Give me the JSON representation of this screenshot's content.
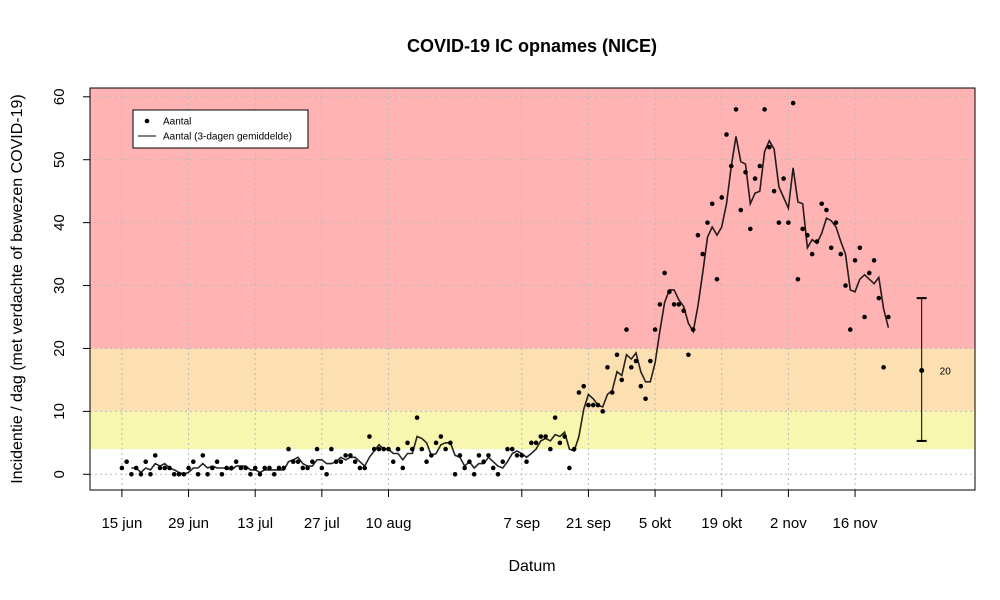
{
  "chart_data": {
    "type": "scatter-line",
    "title": "COVID-19 IC opnames (NICE)",
    "x_label": "Datum",
    "y_label": "Incidentie / dag (met verdachte of bewezen COVID-19)",
    "x": [
      167,
      168,
      169,
      170,
      171,
      172,
      173,
      174,
      175,
      176,
      177,
      178,
      179,
      180,
      181,
      182,
      183,
      184,
      185,
      186,
      187,
      188,
      189,
      190,
      191,
      192,
      193,
      194,
      195,
      196,
      197,
      198,
      199,
      200,
      201,
      202,
      203,
      204,
      205,
      206,
      207,
      208,
      209,
      210,
      211,
      212,
      213,
      214,
      215,
      216,
      217,
      218,
      219,
      220,
      221,
      222,
      223,
      224,
      225,
      226,
      227,
      228,
      229,
      230,
      231,
      232,
      233,
      234,
      235,
      236,
      237,
      238,
      239,
      240,
      241,
      242,
      243,
      244,
      245,
      246,
      247,
      248,
      249,
      250,
      251,
      252,
      253,
      254,
      255,
      256,
      257,
      258,
      259,
      260,
      261,
      262,
      263,
      264,
      265,
      266,
      267,
      268,
      269,
      270,
      271,
      272,
      273,
      274,
      275,
      276,
      277,
      278,
      279,
      280,
      281,
      282,
      283,
      284,
      285,
      286,
      287,
      288,
      289,
      290,
      291,
      292,
      293,
      294,
      295,
      296,
      297,
      298,
      299,
      300,
      301,
      302,
      303,
      304,
      305,
      306,
      307,
      308,
      309,
      310,
      311,
      312,
      313,
      314,
      315,
      316,
      317,
      318,
      319,
      320,
      321,
      322,
      323,
      324,
      325,
      326,
      327,
      328
    ],
    "series": [
      {
        "name": "Aantal",
        "color": "#000000",
        "marker": "point",
        "values": [
          1,
          2,
          0,
          1,
          0,
          2,
          0,
          3,
          1,
          1,
          1,
          0,
          0,
          0,
          1,
          2,
          0,
          3,
          0,
          1,
          2,
          0,
          1,
          1,
          2,
          1,
          1,
          0,
          1,
          0,
          1,
          1,
          0,
          1,
          1,
          4,
          2,
          2,
          1,
          1,
          2,
          4,
          1,
          0,
          4,
          2,
          2,
          3,
          3,
          2,
          1,
          1,
          6,
          4,
          4,
          4,
          4,
          2,
          4,
          1,
          5,
          4,
          9,
          4,
          2,
          3,
          5,
          6,
          4,
          5,
          0,
          3,
          1,
          2,
          0,
          3,
          2,
          3,
          1,
          0,
          2,
          4,
          4,
          3,
          3,
          2,
          5,
          5,
          6,
          6,
          4,
          9,
          5,
          6,
          1,
          4,
          13,
          14,
          11,
          11,
          11,
          10,
          17,
          13,
          19,
          15,
          23,
          17,
          18,
          14,
          12,
          18,
          23,
          27,
          32,
          29,
          27,
          27,
          26,
          19,
          23,
          38,
          35,
          40,
          43,
          31,
          44,
          54,
          49,
          58,
          42,
          48,
          39,
          47,
          49,
          58,
          52,
          45,
          40,
          47,
          40,
          59,
          31,
          39,
          38,
          35,
          37,
          43,
          42,
          36,
          40,
          35,
          30,
          23,
          34,
          36,
          25,
          32,
          34,
          28,
          17,
          25
        ]
      },
      {
        "name": "Aantal (3-dagen gemiddelde)",
        "color": "#000000",
        "marker": "line",
        "values": [
          null,
          null,
          1.0,
          1.0,
          0.3,
          1.0,
          0.7,
          1.7,
          1.3,
          1.7,
          1.0,
          0.7,
          0.3,
          0,
          0.3,
          1.0,
          1.0,
          1.7,
          1.0,
          1.3,
          1.0,
          1.0,
          1.0,
          0.7,
          1.3,
          1.3,
          1.3,
          0.7,
          0.7,
          0.3,
          0.7,
          0.7,
          0.7,
          0.7,
          0.7,
          2.0,
          2.3,
          2.7,
          1.7,
          1.3,
          1.3,
          2.3,
          2.3,
          1.7,
          1.7,
          2.0,
          2.7,
          2.3,
          2.7,
          2.7,
          2.0,
          1.3,
          2.7,
          3.7,
          4.7,
          4.0,
          4.0,
          3.3,
          3.3,
          2.3,
          3.3,
          3.3,
          6.0,
          5.7,
          5.0,
          3.0,
          3.3,
          4.7,
          5.0,
          5.0,
          3.0,
          2.7,
          1.3,
          2.0,
          1.0,
          1.7,
          1.7,
          2.7,
          2.0,
          1.3,
          1.0,
          2.0,
          3.3,
          3.7,
          3.3,
          2.7,
          3.3,
          4.0,
          5.3,
          5.7,
          5.3,
          6.3,
          6.0,
          6.7,
          4.0,
          3.7,
          6.0,
          10.3,
          12.7,
          12.0,
          11.0,
          10.7,
          12.7,
          13.3,
          16.3,
          15.7,
          19.0,
          18.3,
          19.3,
          16.3,
          14.7,
          14.7,
          17.7,
          22.7,
          27.3,
          29.3,
          29.3,
          27.7,
          26.7,
          24.0,
          22.7,
          26.7,
          32.0,
          37.7,
          39.3,
          38.0,
          39.3,
          43.0,
          49.0,
          53.7,
          49.7,
          49.3,
          43.0,
          44.7,
          45.0,
          51.3,
          53.0,
          51.7,
          45.7,
          44.0,
          42.3,
          48.7,
          43.3,
          43.0,
          36.0,
          37.3,
          36.7,
          38.3,
          40.7,
          40.3,
          39.3,
          37.0,
          35.0,
          29.3,
          29.0,
          31.0,
          31.7,
          31.0,
          30.3,
          31.3,
          26.3,
          23.3
        ]
      }
    ],
    "xlim": [
      160.3,
      346.2
    ],
    "xticks": [
      {
        "value": 167,
        "label": "15 jun"
      },
      {
        "value": 181,
        "label": "29 jun"
      },
      {
        "value": 195,
        "label": "13 jul"
      },
      {
        "value": 209,
        "label": "27 jul"
      },
      {
        "value": 223,
        "label": "10 aug"
      },
      {
        "value": 251,
        "label": "7 sep"
      },
      {
        "value": 265,
        "label": "21 sep"
      },
      {
        "value": 279,
        "label": "5 okt"
      },
      {
        "value": 293,
        "label": "19 okt"
      },
      {
        "value": 307,
        "label": "2 nov"
      },
      {
        "value": 321,
        "label": "16 nov"
      }
    ],
    "ylim": [
      -2.5,
      61.4
    ],
    "yticks": [
      0,
      10,
      20,
      30,
      40,
      50,
      60
    ],
    "grid": true,
    "legend": "top-left",
    "zones": [
      {
        "min": 4,
        "max": 10,
        "color": "#f7f7b0"
      },
      {
        "min": 10,
        "max": 20,
        "color": "#fde0b2"
      },
      {
        "min": 20,
        "max": 61.4,
        "color": "#ffb3b3"
      }
    ],
    "interval": {
      "x": 335,
      "low": 5.3,
      "high": 28,
      "mid": 16.5,
      "label": "20"
    }
  }
}
